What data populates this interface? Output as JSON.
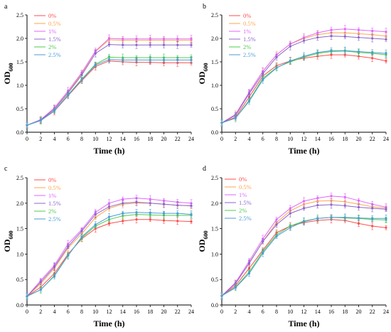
{
  "chart_data": [
    {
      "panel": "a",
      "type": "line",
      "xlabel": "Time (h)",
      "ylabel": "OD",
      "ylabel_sub": "600",
      "xlim": [
        0,
        24
      ],
      "ylim": [
        0,
        2.5
      ],
      "x": [
        0,
        2,
        4,
        6,
        8,
        10,
        12,
        14,
        16,
        18,
        20,
        22,
        24
      ],
      "legend_position": "top-left",
      "series": [
        {
          "name": "0%",
          "color": "#ff4d4d",
          "values": [
            0.15,
            0.25,
            0.45,
            0.78,
            1.1,
            1.4,
            1.52,
            1.5,
            1.49,
            1.49,
            1.48,
            1.48,
            1.48
          ]
        },
        {
          "name": "0.5%",
          "color": "#ffa64d",
          "values": [
            0.15,
            0.26,
            0.5,
            0.85,
            1.25,
            1.72,
            1.97,
            1.96,
            1.96,
            1.96,
            1.96,
            1.96,
            1.96
          ]
        },
        {
          "name": "1%",
          "color": "#e066ff",
          "values": [
            0.15,
            0.27,
            0.52,
            0.88,
            1.27,
            1.73,
            2.0,
            1.99,
            1.99,
            1.99,
            1.99,
            1.99,
            1.99
          ]
        },
        {
          "name": "1.5%",
          "color": "#8c66cc",
          "values": [
            0.15,
            0.26,
            0.49,
            0.84,
            1.22,
            1.68,
            1.87,
            1.86,
            1.86,
            1.86,
            1.86,
            1.86,
            1.86
          ]
        },
        {
          "name": "2%",
          "color": "#4dcc4d",
          "values": [
            0.15,
            0.25,
            0.46,
            0.8,
            1.13,
            1.45,
            1.6,
            1.59,
            1.59,
            1.59,
            1.59,
            1.59,
            1.59
          ]
        },
        {
          "name": "2.5%",
          "color": "#4d9bd6",
          "values": [
            0.15,
            0.25,
            0.46,
            0.79,
            1.12,
            1.43,
            1.55,
            1.54,
            1.54,
            1.54,
            1.54,
            1.54,
            1.54
          ]
        }
      ]
    },
    {
      "panel": "b",
      "type": "line",
      "xlabel": "Time (h)",
      "ylabel": "OD",
      "ylabel_sub": "600",
      "xlim": [
        0,
        24
      ],
      "ylim": [
        0,
        2.5
      ],
      "x": [
        0,
        2,
        4,
        6,
        8,
        10,
        12,
        14,
        16,
        18,
        20,
        22,
        24
      ],
      "legend_position": "top-left",
      "series": [
        {
          "name": "0%",
          "color": "#ff4d4d",
          "values": [
            0.2,
            0.32,
            0.75,
            1.2,
            1.42,
            1.52,
            1.58,
            1.62,
            1.65,
            1.65,
            1.62,
            1.58,
            1.52
          ]
        },
        {
          "name": "0.5%",
          "color": "#ffa64d",
          "values": [
            0.2,
            0.38,
            0.85,
            1.3,
            1.65,
            1.88,
            2.0,
            2.08,
            2.12,
            2.12,
            2.1,
            2.08,
            2.05
          ]
        },
        {
          "name": "1%",
          "color": "#e066ff",
          "values": [
            0.2,
            0.38,
            0.85,
            1.3,
            1.65,
            1.88,
            2.02,
            2.12,
            2.18,
            2.2,
            2.18,
            2.16,
            2.14
          ]
        },
        {
          "name": "1.5%",
          "color": "#8c66cc",
          "values": [
            0.2,
            0.36,
            0.82,
            1.25,
            1.6,
            1.83,
            1.95,
            2.02,
            2.05,
            2.04,
            2.02,
            2.0,
            1.98
          ]
        },
        {
          "name": "2%",
          "color": "#4dcc4d",
          "values": [
            0.2,
            0.3,
            0.68,
            1.15,
            1.38,
            1.5,
            1.6,
            1.68,
            1.72,
            1.73,
            1.7,
            1.68,
            1.65
          ]
        },
        {
          "name": "2.5%",
          "color": "#4d9bd6",
          "values": [
            0.2,
            0.3,
            0.66,
            1.12,
            1.37,
            1.52,
            1.62,
            1.7,
            1.74,
            1.74,
            1.72,
            1.7,
            1.68
          ]
        }
      ]
    },
    {
      "panel": "c",
      "type": "line",
      "xlabel": "Time (h)",
      "ylabel": "OD",
      "ylabel_sub": "600",
      "xlim": [
        0,
        24
      ],
      "ylim": [
        0,
        2.5
      ],
      "x": [
        0,
        2,
        4,
        6,
        8,
        10,
        12,
        14,
        16,
        18,
        20,
        22,
        24
      ],
      "legend_position": "top-left",
      "series": [
        {
          "name": "0%",
          "color": "#ff4d4d",
          "values": [
            0.17,
            0.35,
            0.62,
            1.0,
            1.3,
            1.5,
            1.6,
            1.65,
            1.68,
            1.68,
            1.66,
            1.65,
            1.64
          ]
        },
        {
          "name": "0.5%",
          "color": "#ffa64d",
          "values": [
            0.17,
            0.42,
            0.72,
            1.12,
            1.4,
            1.72,
            1.9,
            1.98,
            2.0,
            2.0,
            1.98,
            1.96,
            1.95
          ]
        },
        {
          "name": "1%",
          "color": "#e066ff",
          "values": [
            0.17,
            0.48,
            0.78,
            1.2,
            1.48,
            1.82,
            2.0,
            2.08,
            2.1,
            2.08,
            2.05,
            2.02,
            2.0
          ]
        },
        {
          "name": "1.5%",
          "color": "#8c66cc",
          "values": [
            0.17,
            0.45,
            0.75,
            1.15,
            1.45,
            1.78,
            1.93,
            2.0,
            2.02,
            2.0,
            1.98,
            1.96,
            1.95
          ]
        },
        {
          "name": "2%",
          "color": "#4dcc4d",
          "values": [
            0.17,
            0.3,
            0.58,
            0.98,
            1.32,
            1.55,
            1.68,
            1.75,
            1.78,
            1.77,
            1.76,
            1.76,
            1.76
          ]
        },
        {
          "name": "2.5%",
          "color": "#4d9bd6",
          "values": [
            0.17,
            0.3,
            0.57,
            0.97,
            1.34,
            1.58,
            1.73,
            1.8,
            1.82,
            1.81,
            1.8,
            1.8,
            1.78
          ]
        }
      ]
    },
    {
      "panel": "d",
      "type": "line",
      "xlabel": "Time (h)",
      "ylabel": "OD",
      "ylabel_sub": "600",
      "xlim": [
        0,
        24
      ],
      "ylim": [
        0,
        2.5
      ],
      "x": [
        0,
        2,
        4,
        6,
        8,
        10,
        12,
        14,
        16,
        18,
        20,
        22,
        24
      ],
      "legend_position": "top-right",
      "series": [
        {
          "name": "0%",
          "color": "#ff4d4d",
          "values": [
            0.18,
            0.38,
            0.72,
            1.08,
            1.42,
            1.55,
            1.62,
            1.66,
            1.68,
            1.66,
            1.6,
            1.55,
            1.52
          ]
        },
        {
          "name": "0.5%",
          "color": "#ffa64d",
          "values": [
            0.18,
            0.42,
            0.82,
            1.25,
            1.62,
            1.85,
            1.98,
            2.04,
            2.05,
            2.03,
            1.98,
            1.93,
            1.9
          ]
        },
        {
          "name": "1%",
          "color": "#e066ff",
          "values": [
            0.18,
            0.44,
            0.86,
            1.3,
            1.68,
            1.9,
            2.04,
            2.1,
            2.14,
            2.12,
            2.05,
            1.98,
            1.92
          ]
        },
        {
          "name": "1.5%",
          "color": "#8c66cc",
          "values": [
            0.18,
            0.42,
            0.82,
            1.25,
            1.58,
            1.8,
            1.9,
            1.96,
            1.97,
            1.95,
            1.92,
            1.9,
            1.88
          ]
        },
        {
          "name": "2%",
          "color": "#4dcc4d",
          "values": [
            0.18,
            0.35,
            0.65,
            1.05,
            1.38,
            1.55,
            1.65,
            1.7,
            1.72,
            1.71,
            1.7,
            1.68,
            1.67
          ]
        },
        {
          "name": "2.5%",
          "color": "#4d9bd6",
          "values": [
            0.18,
            0.34,
            0.62,
            1.02,
            1.35,
            1.52,
            1.64,
            1.7,
            1.72,
            1.72,
            1.71,
            1.7,
            1.7
          ]
        }
      ]
    }
  ]
}
